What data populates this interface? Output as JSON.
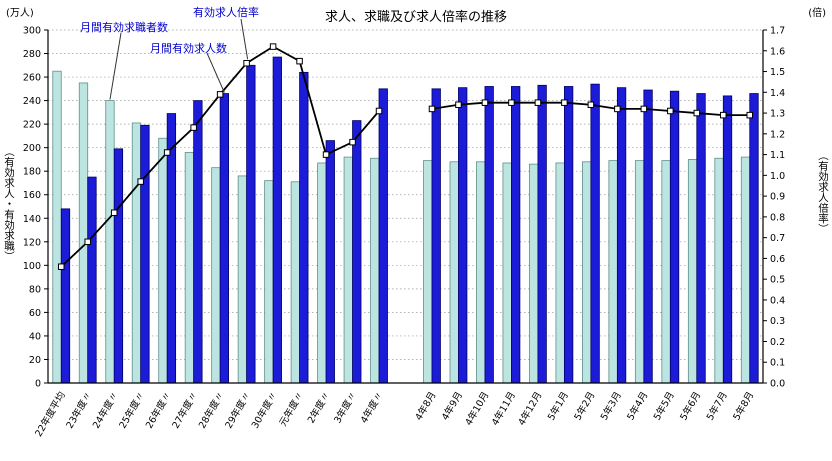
{
  "chart_data": {
    "type": "bar",
    "subtype": "grouped-bar-with-line-combo",
    "title": "求人、求職及び求人倍率の推移",
    "left_axis": {
      "unit": "(万人)",
      "caption": "（有効求人・有効求職）",
      "min": 0,
      "max": 300,
      "step": 20
    },
    "right_axis": {
      "unit": "(倍)",
      "caption": "（有効求人倍率）",
      "min": 0.0,
      "max": 1.7,
      "step": 0.1
    },
    "grid": true,
    "legend_position": "none",
    "gap_after": 13,
    "categories": [
      "22年度平均",
      "23年度〃",
      "24年度〃",
      "25年度〃",
      "26年度〃",
      "27年度〃",
      "28年度〃",
      "29年度〃",
      "30年度〃",
      "元年度〃",
      "2年度〃",
      "3年度〃",
      "4年度〃",
      "4年8月",
      "4年9月",
      "4年10月",
      "4年11月",
      "4年12月",
      "5年1月",
      "5年2月",
      "5年3月",
      "5年4月",
      "5年5月",
      "5年6月",
      "5年7月",
      "5年8月"
    ],
    "series": [
      {
        "name": "月間有効求職者数",
        "type": "bar",
        "axis": "left",
        "color": "#BCE4E0",
        "border": "#5F8F8C",
        "values": [
          265,
          255,
          240,
          221,
          208,
          196,
          183,
          176,
          172,
          171,
          187,
          192,
          191,
          189,
          188,
          188,
          187,
          186,
          187,
          188,
          189,
          189,
          189,
          190,
          191,
          192
        ]
      },
      {
        "name": "月間有効求人数",
        "type": "bar",
        "axis": "left",
        "color": "#1C1CD8",
        "border": "#000066",
        "values": [
          148,
          175,
          199,
          219,
          229,
          240,
          246,
          270,
          277,
          264,
          206,
          223,
          250,
          250,
          251,
          252,
          252,
          253,
          252,
          254,
          251,
          249,
          248,
          246,
          244,
          246
        ]
      },
      {
        "name": "有効求人倍率",
        "type": "line",
        "axis": "right",
        "color": "#000000",
        "marker": "white-square",
        "values": [
          0.56,
          0.68,
          0.82,
          0.97,
          1.11,
          1.23,
          1.39,
          1.54,
          1.62,
          1.55,
          1.1,
          1.16,
          1.31,
          1.32,
          1.34,
          1.35,
          1.35,
          1.35,
          1.35,
          1.34,
          1.32,
          1.32,
          1.31,
          1.3,
          1.29,
          1.29
        ]
      }
    ],
    "annotations": [
      {
        "text": "月間有効求職者数",
        "color": "#0000CC"
      },
      {
        "text": "月間有効求人数",
        "color": "#0000CC"
      },
      {
        "text": "有効求人倍率",
        "color": "#0000CC"
      }
    ]
  }
}
